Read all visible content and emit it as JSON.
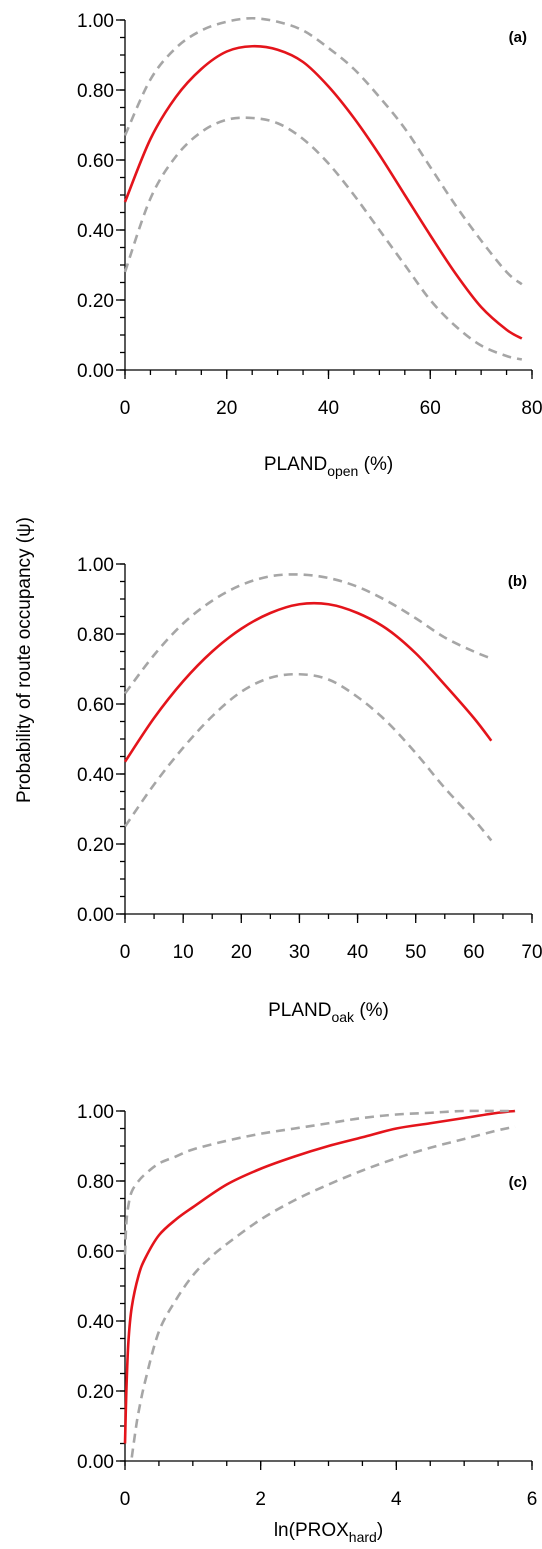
{
  "ylabel": "Probability of route occupancy (ψ)",
  "colors": {
    "fit": "#e4141b",
    "ci": "#a6a6a6"
  },
  "chart_data": [
    {
      "type": "line",
      "panel_label": "(a)",
      "xlabel": {
        "main": "PLAND",
        "sub": "open",
        "suffix": " (%)"
      },
      "xlim": [
        0,
        80
      ],
      "ylim": [
        0,
        1
      ],
      "xticks": [
        "0",
        "20",
        "40",
        "60",
        "80"
      ],
      "yticks": [
        "0.00",
        "0.20",
        "0.40",
        "0.60",
        "0.80",
        "1.00"
      ],
      "x_minor_step": 5,
      "y_minor_step": 0.05,
      "grid": false,
      "series": [
        {
          "role": "fit",
          "x": [
            0,
            5,
            10,
            15,
            20,
            25,
            30,
            35,
            40,
            45,
            50,
            55,
            60,
            65,
            70,
            75,
            78
          ],
          "y": [
            0.48,
            0.66,
            0.78,
            0.86,
            0.91,
            0.925,
            0.915,
            0.88,
            0.81,
            0.72,
            0.615,
            0.5,
            0.385,
            0.275,
            0.18,
            0.115,
            0.09
          ]
        },
        {
          "role": "ci_upper",
          "x": [
            0,
            5,
            10,
            15,
            20,
            25,
            30,
            35,
            40,
            45,
            50,
            55,
            60,
            65,
            70,
            75,
            78
          ],
          "y": [
            0.67,
            0.83,
            0.92,
            0.97,
            0.995,
            1.005,
            0.995,
            0.97,
            0.92,
            0.86,
            0.78,
            0.69,
            0.58,
            0.47,
            0.37,
            0.28,
            0.245
          ]
        },
        {
          "role": "ci_lower",
          "x": [
            0,
            5,
            10,
            15,
            20,
            25,
            30,
            35,
            40,
            45,
            50,
            55,
            60,
            65,
            70,
            75,
            78
          ],
          "y": [
            0.28,
            0.49,
            0.61,
            0.68,
            0.715,
            0.72,
            0.705,
            0.66,
            0.59,
            0.5,
            0.4,
            0.3,
            0.2,
            0.125,
            0.07,
            0.04,
            0.03
          ]
        }
      ]
    },
    {
      "type": "line",
      "panel_label": "(b)",
      "xlabel": {
        "main": "PLAND",
        "sub": "oak",
        "suffix": " (%)"
      },
      "xlim": [
        0,
        70
      ],
      "ylim": [
        0,
        1
      ],
      "xticks": [
        "0",
        "10",
        "20",
        "30",
        "40",
        "50",
        "60",
        "70"
      ],
      "yticks": [
        "0.00",
        "0.20",
        "0.40",
        "0.60",
        "0.80",
        "1.00"
      ],
      "x_minor_step": 5,
      "y_minor_step": 0.05,
      "grid": false,
      "series": [
        {
          "role": "fit",
          "x": [
            0,
            5,
            10,
            15,
            20,
            25,
            30,
            35,
            40,
            45,
            50,
            55,
            60,
            63
          ],
          "y": [
            0.435,
            0.56,
            0.665,
            0.75,
            0.815,
            0.86,
            0.885,
            0.885,
            0.86,
            0.815,
            0.745,
            0.655,
            0.56,
            0.495
          ]
        },
        {
          "role": "ci_upper",
          "x": [
            0,
            5,
            10,
            15,
            20,
            25,
            30,
            35,
            40,
            45,
            50,
            55,
            60,
            63
          ],
          "y": [
            0.63,
            0.74,
            0.83,
            0.895,
            0.94,
            0.965,
            0.97,
            0.96,
            0.935,
            0.895,
            0.845,
            0.79,
            0.75,
            0.73
          ]
        },
        {
          "role": "ci_lower",
          "x": [
            0,
            5,
            10,
            15,
            20,
            25,
            30,
            35,
            40,
            45,
            50,
            55,
            60,
            63
          ],
          "y": [
            0.25,
            0.37,
            0.475,
            0.565,
            0.635,
            0.675,
            0.685,
            0.67,
            0.62,
            0.55,
            0.46,
            0.36,
            0.27,
            0.21
          ]
        }
      ]
    },
    {
      "type": "line",
      "panel_label": "(c)",
      "xlabel": {
        "main": "ln(PROX",
        "sub": "hard",
        "suffix": ")"
      },
      "xlim": [
        0,
        6
      ],
      "ylim": [
        0,
        1
      ],
      "xticks": [
        "0",
        "2",
        "4",
        "6"
      ],
      "yticks": [
        "0.00",
        "0.20",
        "0.40",
        "0.60",
        "0.80",
        "1.00"
      ],
      "x_minor_step": 0.5,
      "y_minor_step": 0.05,
      "grid": false,
      "series": [
        {
          "role": "fit",
          "x": [
            0,
            0.02,
            0.05,
            0.1,
            0.2,
            0.3,
            0.5,
            0.75,
            1,
            1.5,
            2,
            2.5,
            3,
            3.5,
            4,
            4.5,
            5,
            5.5,
            5.75
          ],
          "y": [
            0.05,
            0.2,
            0.34,
            0.44,
            0.53,
            0.58,
            0.645,
            0.69,
            0.725,
            0.79,
            0.835,
            0.87,
            0.9,
            0.925,
            0.95,
            0.965,
            0.98,
            0.995,
            1.0
          ]
        },
        {
          "role": "ci_upper",
          "x": [
            0,
            0.02,
            0.05,
            0.1,
            0.2,
            0.3,
            0.5,
            0.75,
            1,
            1.5,
            2,
            2.5,
            3,
            3.5,
            4,
            4.5,
            5,
            5.5,
            5.75
          ],
          "y": [
            0.59,
            0.68,
            0.73,
            0.77,
            0.8,
            0.82,
            0.85,
            0.87,
            0.89,
            0.915,
            0.935,
            0.95,
            0.965,
            0.98,
            0.99,
            0.995,
            1.0,
            1.0,
            1.0
          ]
        },
        {
          "role": "ci_lower",
          "x": [
            0.1,
            0.15,
            0.2,
            0.3,
            0.5,
            0.75,
            1,
            1.25,
            1.5,
            2,
            2.5,
            3,
            3.5,
            4,
            4.5,
            5,
            5.5,
            5.75
          ],
          "y": [
            0.01,
            0.08,
            0.14,
            0.23,
            0.37,
            0.46,
            0.53,
            0.58,
            0.62,
            0.69,
            0.745,
            0.79,
            0.83,
            0.865,
            0.895,
            0.92,
            0.945,
            0.955
          ]
        }
      ]
    }
  ]
}
